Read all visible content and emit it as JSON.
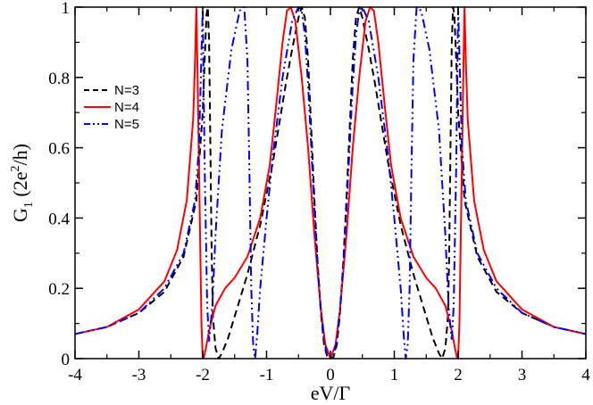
{
  "chart_data": {
    "type": "line",
    "xlabel": "eV/Γ",
    "ylabel_main": "G",
    "ylabel_sub": "1",
    "ylabel_unit_open": " (2e",
    "ylabel_unit_sup": "2",
    "ylabel_unit_close": "/h)",
    "xlim": [
      -4,
      4
    ],
    "ylim": [
      0,
      1
    ],
    "x_ticks": [
      -4,
      -3,
      -2,
      -1,
      0,
      1,
      2,
      3,
      4
    ],
    "x_tick_labels": [
      "-4",
      "-3",
      "-2",
      "-1",
      "0",
      "1",
      "2",
      "3",
      "4"
    ],
    "y_ticks": [
      0,
      0.2,
      0.4,
      0.6,
      0.8,
      1
    ],
    "y_tick_labels": [
      "0",
      "0.2",
      "0.4",
      "0.6",
      "0.8",
      "1"
    ],
    "grid": false,
    "legend_position": "upper-left",
    "series": [
      {
        "name": "N=3",
        "color": "#000000",
        "dash": "dashed",
        "x": [
          -4,
          -3.5,
          -3,
          -2.6,
          -2.3,
          -2.1,
          -2.0,
          -1.97,
          -1.94,
          -1.92,
          -1.9,
          -1.88,
          -1.86,
          -1.84,
          -1.8,
          -1.75,
          -1.7,
          -1.6,
          -1.5,
          -1.3,
          -1.1,
          -0.9,
          -0.7,
          -0.6,
          -0.5,
          -0.45,
          -0.4,
          -0.35,
          -0.3,
          -0.25,
          -0.2,
          -0.15,
          -0.1,
          -0.05,
          0,
          0.05,
          0.1,
          0.15,
          0.2,
          0.25,
          0.3,
          0.35,
          0.4,
          0.45,
          0.5,
          0.6,
          0.7,
          0.9,
          1.1,
          1.3,
          1.5,
          1.6,
          1.7,
          1.75,
          1.8,
          1.84,
          1.86,
          1.88,
          1.9,
          1.92,
          1.94,
          1.97,
          2.0,
          2.1,
          2.3,
          2.6,
          3.0,
          3.5,
          4
        ],
        "y": [
          0.07,
          0.09,
          0.13,
          0.19,
          0.29,
          0.45,
          0.7,
          0.85,
          0.98,
          1.0,
          0.9,
          0.6,
          0.3,
          0.12,
          0.03,
          0.0,
          0.015,
          0.06,
          0.12,
          0.24,
          0.38,
          0.56,
          0.78,
          0.88,
          0.97,
          1.0,
          0.97,
          0.85,
          0.65,
          0.45,
          0.27,
          0.13,
          0.04,
          0.005,
          0.0,
          0.005,
          0.04,
          0.13,
          0.27,
          0.45,
          0.65,
          0.85,
          0.97,
          1.0,
          0.97,
          0.88,
          0.78,
          0.56,
          0.38,
          0.24,
          0.12,
          0.06,
          0.015,
          0.0,
          0.03,
          0.12,
          0.3,
          0.6,
          0.9,
          1.0,
          0.98,
          0.85,
          0.7,
          0.45,
          0.29,
          0.19,
          0.13,
          0.09,
          0.07
        ]
      },
      {
        "name": "N=4",
        "color": "#ff0000",
        "dash": "solid",
        "x": [
          -4,
          -3.5,
          -3,
          -2.6,
          -2.4,
          -2.25,
          -2.15,
          -2.12,
          -2.1,
          -2.08,
          -2.05,
          -2.02,
          -2.0,
          -1.98,
          -1.95,
          -1.9,
          -1.8,
          -1.65,
          -1.5,
          -1.3,
          -1.1,
          -0.95,
          -0.85,
          -0.75,
          -0.68,
          -0.62,
          -0.55,
          -0.45,
          -0.35,
          -0.25,
          -0.15,
          -0.08,
          0,
          0.08,
          0.15,
          0.25,
          0.35,
          0.45,
          0.55,
          0.62,
          0.68,
          0.75,
          0.85,
          0.95,
          1.1,
          1.3,
          1.5,
          1.65,
          1.8,
          1.9,
          1.95,
          1.98,
          2.0,
          2.02,
          2.05,
          2.08,
          2.1,
          2.12,
          2.15,
          2.25,
          2.4,
          2.6,
          3.0,
          3.5,
          4
        ],
        "y": [
          0.07,
          0.09,
          0.14,
          0.22,
          0.31,
          0.45,
          0.68,
          0.85,
          1.0,
          0.8,
          0.45,
          0.1,
          0.0,
          0.005,
          0.03,
          0.08,
          0.15,
          0.2,
          0.23,
          0.29,
          0.4,
          0.55,
          0.72,
          0.9,
          0.99,
          1.0,
          0.96,
          0.8,
          0.6,
          0.35,
          0.14,
          0.04,
          0.0,
          0.04,
          0.14,
          0.35,
          0.6,
          0.8,
          0.96,
          1.0,
          0.99,
          0.9,
          0.72,
          0.55,
          0.4,
          0.29,
          0.23,
          0.2,
          0.15,
          0.08,
          0.03,
          0.005,
          0.0,
          0.1,
          0.45,
          0.8,
          1.0,
          0.85,
          0.68,
          0.45,
          0.31,
          0.22,
          0.14,
          0.09,
          0.07
        ]
      },
      {
        "name": "N=5",
        "color": "#0000ff",
        "dash": "dash-dot-dot",
        "x": [
          -4,
          -3.5,
          -3,
          -2.6,
          -2.3,
          -2.12,
          -2.06,
          -2.03,
          -2.0,
          -1.97,
          -1.93,
          -1.9,
          -1.85,
          -1.8,
          -1.7,
          -1.55,
          -1.42,
          -1.35,
          -1.3,
          -1.27,
          -1.24,
          -1.21,
          -1.18,
          -1.15,
          -1.1,
          -1.0,
          -0.9,
          -0.75,
          -0.6,
          -0.5,
          -0.45,
          -0.4,
          -0.35,
          -0.3,
          -0.25,
          -0.2,
          -0.15,
          -0.1,
          -0.05,
          0,
          0.05,
          0.1,
          0.15,
          0.2,
          0.25,
          0.3,
          0.35,
          0.4,
          0.45,
          0.5,
          0.6,
          0.75,
          0.9,
          1.0,
          1.1,
          1.15,
          1.18,
          1.21,
          1.24,
          1.27,
          1.3,
          1.35,
          1.42,
          1.55,
          1.7,
          1.8,
          1.85,
          1.9,
          1.93,
          1.97,
          2.0,
          2.03,
          2.06,
          2.12,
          2.3,
          2.6,
          3.0,
          3.5,
          4
        ],
        "y": [
          0.07,
          0.09,
          0.13,
          0.2,
          0.3,
          0.45,
          0.6,
          0.8,
          1.0,
          0.55,
          0.15,
          0.05,
          0.15,
          0.35,
          0.65,
          0.88,
          0.99,
          1.0,
          0.85,
          0.55,
          0.2,
          0.04,
          0.0,
          0.06,
          0.2,
          0.4,
          0.58,
          0.8,
          0.96,
          1.0,
          0.99,
          0.92,
          0.78,
          0.6,
          0.42,
          0.26,
          0.14,
          0.05,
          0.01,
          0.0,
          0.01,
          0.05,
          0.14,
          0.26,
          0.42,
          0.6,
          0.78,
          0.92,
          0.99,
          1.0,
          0.96,
          0.8,
          0.58,
          0.4,
          0.2,
          0.06,
          0.0,
          0.04,
          0.2,
          0.55,
          0.85,
          1.0,
          0.99,
          0.88,
          0.65,
          0.35,
          0.15,
          0.05,
          0.15,
          0.55,
          1.0,
          0.8,
          0.6,
          0.45,
          0.3,
          0.2,
          0.13,
          0.09,
          0.07
        ]
      }
    ]
  }
}
